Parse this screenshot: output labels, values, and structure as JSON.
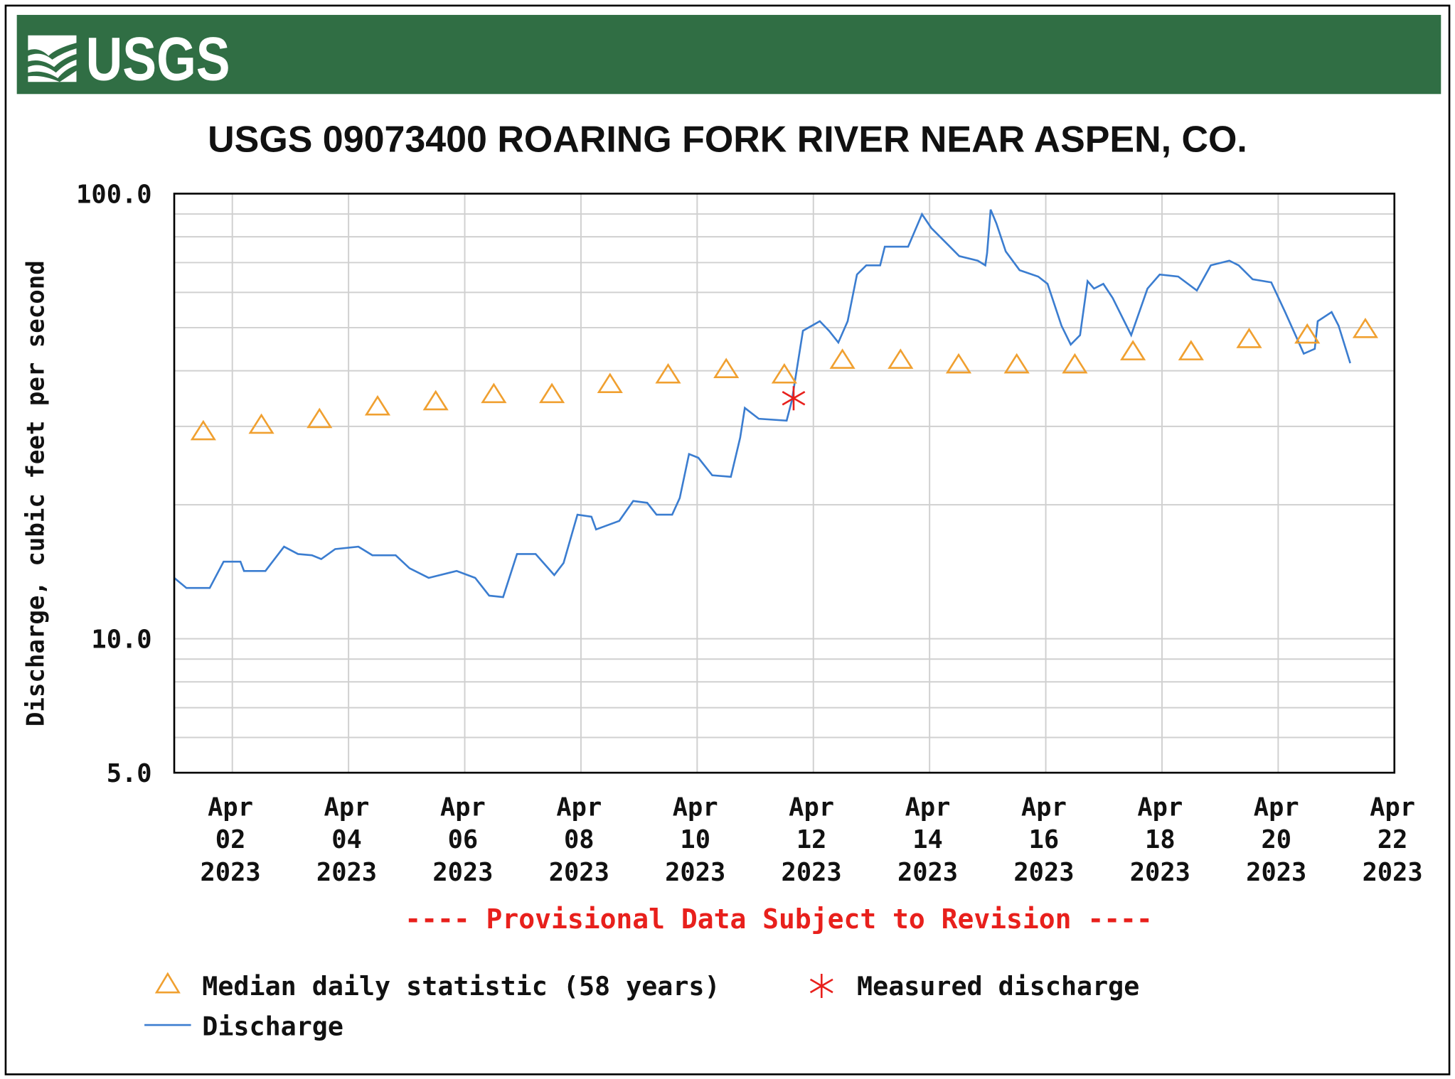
{
  "header": {
    "logo_text": "USGS",
    "brand_color": "#306e44"
  },
  "chart_data": {
    "type": "line",
    "title": "USGS 09073400 ROARING FORK RIVER NEAR ASPEN, CO.",
    "ylabel": "Discharge, cubic feet per second",
    "xlabel": "",
    "yscale": "log",
    "ylim": [
      5,
      100
    ],
    "xlim_days_since_apr01": [
      0,
      21
    ],
    "y_tick_labels": [
      {
        "value": 100,
        "label": "100.0"
      },
      {
        "value": 10,
        "label": "10.0"
      },
      {
        "value": 5,
        "label": "5.0"
      }
    ],
    "y_minor_gridlines": [
      6,
      7,
      8,
      9,
      20,
      30,
      40,
      50,
      60,
      70,
      80,
      90
    ],
    "x_ticks": [
      {
        "day": 1,
        "lines": [
          "Apr",
          "02",
          "2023"
        ]
      },
      {
        "day": 3,
        "lines": [
          "Apr",
          "04",
          "2023"
        ]
      },
      {
        "day": 5,
        "lines": [
          "Apr",
          "06",
          "2023"
        ]
      },
      {
        "day": 7,
        "lines": [
          "Apr",
          "08",
          "2023"
        ]
      },
      {
        "day": 9,
        "lines": [
          "Apr",
          "10",
          "2023"
        ]
      },
      {
        "day": 11,
        "lines": [
          "Apr",
          "12",
          "2023"
        ]
      },
      {
        "day": 13,
        "lines": [
          "Apr",
          "14",
          "2023"
        ]
      },
      {
        "day": 15,
        "lines": [
          "Apr",
          "16",
          "2023"
        ]
      },
      {
        "day": 17,
        "lines": [
          "Apr",
          "18",
          "2023"
        ]
      },
      {
        "day": 19,
        "lines": [
          "Apr",
          "20",
          "2023"
        ]
      },
      {
        "day": 21,
        "lines": [
          "Apr",
          "22",
          "2023"
        ]
      }
    ],
    "grid": true,
    "provisional_note": "---- Provisional Data Subject to Revision ----",
    "legend": {
      "placement": "bottom",
      "entries": [
        "Median daily statistic (58 years)",
        "Measured discharge",
        "Discharge"
      ]
    },
    "colors": {
      "discharge": "#3b7dd0",
      "median": "#f0a030",
      "measured": "#e8201c",
      "note": "#e8201c"
    },
    "series": [
      {
        "name": "Median daily statistic (58 years)",
        "marker": "triangle",
        "x": [
          0.5,
          1.5,
          2.5,
          3.5,
          4.5,
          5.5,
          6.5,
          7.5,
          8.5,
          9.5,
          10.5,
          11.5,
          12.5,
          13.5,
          14.5,
          15.5,
          16.5,
          17.5,
          18.5,
          19.5,
          20.5
        ],
        "y": [
          29.3,
          30.3,
          31.2,
          33.3,
          34.2,
          35.5,
          35.5,
          37.4,
          39.3,
          40.4,
          39.3,
          42.4,
          42.4,
          41.4,
          41.4,
          41.4,
          44.3,
          44.3,
          47.2,
          48.3,
          49.7
        ]
      },
      {
        "name": "Measured discharge",
        "marker": "asterisk",
        "x": [
          10.66
        ],
        "y": [
          34.7
        ]
      },
      {
        "name": "Discharge",
        "marker": "line",
        "x": [
          0,
          0.21,
          0.61,
          0.85,
          1.14,
          1.2,
          1.57,
          1.89,
          2.13,
          2.37,
          2.53,
          2.77,
          3.17,
          3.41,
          3.81,
          4.05,
          4.38,
          4.86,
          5.18,
          5.42,
          5.66,
          5.9,
          6.22,
          6.54,
          6.7,
          6.94,
          7.18,
          7.26,
          7.66,
          7.9,
          8.14,
          8.3,
          8.57,
          8.7,
          8.86,
          9.02,
          9.26,
          9.58,
          9.74,
          9.82,
          10.06,
          10.54,
          10.63,
          10.82,
          11.11,
          11.27,
          11.43,
          11.59,
          11.75,
          11.91,
          12.15,
          12.23,
          12.63,
          12.87,
          13.03,
          13.35,
          13.51,
          13.83,
          13.96,
          13.99,
          14.05,
          14.15,
          14.31,
          14.55,
          14.87,
          15.03,
          15.27,
          15.43,
          15.59,
          15.72,
          15.83,
          15.99,
          16.15,
          16.47,
          16.75,
          16.96,
          17.28,
          17.6,
          17.84,
          18.16,
          18.32,
          18.56,
          18.88,
          19.12,
          19.44,
          19.63,
          19.68,
          19.92,
          20.04,
          20.24
        ],
        "y": [
          13.7,
          13.0,
          13.0,
          14.9,
          14.9,
          14.2,
          14.2,
          16.1,
          15.5,
          15.4,
          15.1,
          15.9,
          16.1,
          15.4,
          15.4,
          14.4,
          13.7,
          14.2,
          13.7,
          12.5,
          12.4,
          15.5,
          15.5,
          13.9,
          14.8,
          19.0,
          18.8,
          17.6,
          18.4,
          20.4,
          20.2,
          19.0,
          19.0,
          20.7,
          26.0,
          25.5,
          23.3,
          23.1,
          28.3,
          33.0,
          31.2,
          30.9,
          34.3,
          49.2,
          51.7,
          49.2,
          46.3,
          51.7,
          65.8,
          69.0,
          69.0,
          76.0,
          76.0,
          89.9,
          83.7,
          76.0,
          72.4,
          70.7,
          69.0,
          73.5,
          92.1,
          85.7,
          74.2,
          67.3,
          65.1,
          62.7,
          50.5,
          45.8,
          48.1,
          63.6,
          61.2,
          62.7,
          58.3,
          48.1,
          61.2,
          65.8,
          65.1,
          60.6,
          69.0,
          70.7,
          69.0,
          64.2,
          63.2,
          54.2,
          43.7,
          44.8,
          51.7,
          54.2,
          50.5,
          41.6
        ]
      }
    ]
  }
}
